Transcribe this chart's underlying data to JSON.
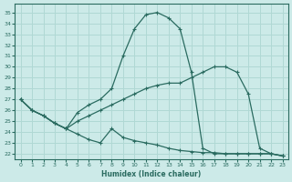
{
  "xlabel": "Humidex (Indice chaleur)",
  "bg_color": "#cceae8",
  "grid_color": "#b0d8d4",
  "line_color": "#2a6b60",
  "xlim": [
    -0.5,
    23.5
  ],
  "ylim": [
    21.5,
    35.8
  ],
  "xticks": [
    0,
    1,
    2,
    3,
    4,
    5,
    6,
    7,
    8,
    9,
    10,
    11,
    12,
    13,
    14,
    15,
    16,
    17,
    18,
    19,
    20,
    21,
    22,
    23
  ],
  "yticks": [
    22,
    23,
    24,
    25,
    26,
    27,
    28,
    29,
    30,
    31,
    32,
    33,
    34,
    35
  ],
  "line1_x": [
    0,
    1,
    2,
    3,
    4,
    5,
    6,
    7,
    8,
    9,
    10,
    11,
    12,
    13,
    14,
    15,
    16,
    17,
    18,
    19,
    20,
    21,
    22,
    23
  ],
  "line1_y": [
    27.0,
    26.0,
    25.5,
    24.8,
    24.3,
    25.8,
    26.5,
    27.0,
    28.0,
    31.0,
    33.5,
    34.8,
    35.0,
    34.5,
    33.5,
    29.5,
    22.5,
    22.0,
    22.0,
    22.0,
    22.0,
    22.0,
    22.0,
    21.8
  ],
  "line2_x": [
    0,
    1,
    2,
    3,
    4,
    5,
    6,
    7,
    8,
    9,
    10,
    11,
    12,
    13,
    14,
    15,
    16,
    17,
    18,
    19,
    20,
    21,
    22,
    23
  ],
  "line2_y": [
    27.0,
    26.0,
    25.5,
    24.8,
    24.3,
    25.0,
    25.5,
    26.0,
    26.5,
    27.0,
    27.5,
    28.0,
    28.3,
    28.5,
    28.5,
    29.0,
    29.5,
    30.0,
    30.0,
    29.5,
    27.5,
    22.5,
    22.0,
    21.8
  ],
  "line3_x": [
    0,
    1,
    2,
    3,
    4,
    5,
    6,
    7,
    8,
    9,
    10,
    11,
    12,
    13,
    14,
    15,
    16,
    17,
    18,
    19,
    20,
    21,
    22,
    23
  ],
  "line3_y": [
    27.0,
    26.0,
    25.5,
    24.8,
    24.3,
    23.8,
    23.3,
    23.0,
    24.3,
    23.5,
    23.2,
    23.0,
    22.8,
    22.5,
    22.3,
    22.2,
    22.1,
    22.1,
    22.0,
    22.0,
    22.0,
    22.0,
    22.0,
    21.8
  ]
}
